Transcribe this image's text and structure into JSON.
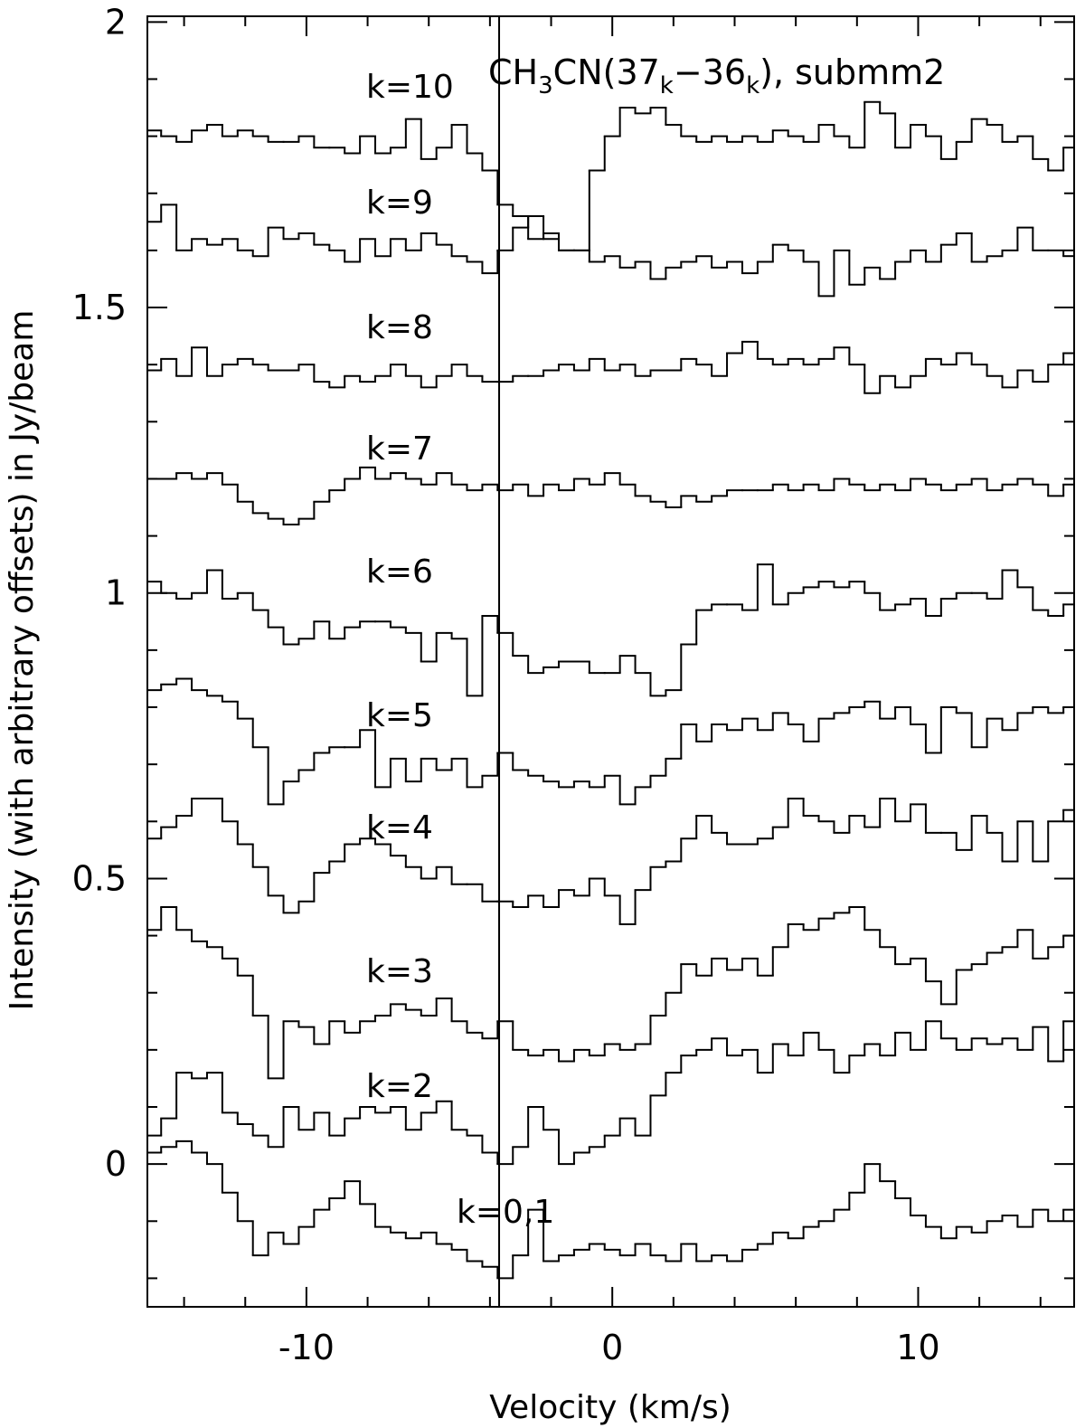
{
  "chart_data": {
    "type": "step",
    "title": [
      "CH",
      "3",
      "CN(37",
      "k",
      "−36",
      "k",
      "), submm2"
    ],
    "xlabel": "Velocity (km/s)",
    "ylabel": "Intensity (with arbitrary offsets) in Jy/beam",
    "xlim": [
      -15.2,
      15.1
    ],
    "ylim": [
      -0.25,
      2.01
    ],
    "xticks": [
      -10,
      0,
      10
    ],
    "yticks": [
      0,
      0.5,
      1,
      1.5,
      2
    ],
    "xminorticks": [
      -14,
      -12,
      -8,
      -6,
      -4,
      -2,
      2,
      4,
      6,
      8,
      12,
      14
    ],
    "yminorticks": [
      -0.2,
      -0.1,
      0.1,
      0.2,
      0.3,
      0.4,
      0.6,
      0.7,
      0.8,
      0.9,
      1.1,
      1.2,
      1.3,
      1.4,
      1.6,
      1.7,
      1.8,
      1.9
    ],
    "vline": -3.7,
    "color": "#000000",
    "x": [
      -15,
      -14.5,
      -14,
      -13.5,
      -13,
      -12.5,
      -12,
      -11.5,
      -11,
      -10.5,
      -10,
      -9.5,
      -9,
      -8.5,
      -8,
      -7.5,
      -7,
      -6.5,
      -6,
      -5.5,
      -5,
      -4.5,
      -4,
      -3.5,
      -3,
      -2.5,
      -2,
      -1.5,
      -1,
      -0.5,
      0,
      0.5,
      1,
      1.5,
      2,
      2.5,
      3,
      3.5,
      4,
      4.5,
      5,
      5.5,
      6,
      6.5,
      7,
      7.5,
      8,
      8.5,
      9,
      9.5,
      10,
      10.5,
      11,
      11.5,
      12,
      12.5,
      13,
      13.5,
      14,
      14.5,
      15
    ],
    "series": [
      {
        "name": "k=10",
        "values": [
          1.81,
          1.8,
          1.79,
          1.81,
          1.82,
          1.8,
          1.81,
          1.8,
          1.79,
          1.79,
          1.8,
          1.78,
          1.78,
          1.77,
          1.8,
          1.77,
          1.78,
          1.83,
          1.76,
          1.78,
          1.82,
          1.77,
          1.74,
          1.68,
          1.66,
          1.62,
          1.63,
          1.6,
          1.6,
          1.74,
          1.8,
          1.85,
          1.84,
          1.85,
          1.82,
          1.8,
          1.79,
          1.8,
          1.79,
          1.8,
          1.79,
          1.81,
          1.8,
          1.79,
          1.82,
          1.8,
          1.78,
          1.86,
          1.84,
          1.78,
          1.82,
          1.8,
          1.76,
          1.79,
          1.83,
          1.82,
          1.79,
          1.8,
          1.76,
          1.74,
          1.78
        ]
      },
      {
        "name": "k=9",
        "values": [
          1.65,
          1.68,
          1.6,
          1.62,
          1.61,
          1.62,
          1.6,
          1.59,
          1.64,
          1.62,
          1.63,
          1.61,
          1.6,
          1.58,
          1.62,
          1.59,
          1.62,
          1.6,
          1.63,
          1.61,
          1.59,
          1.58,
          1.56,
          1.6,
          1.64,
          1.66,
          1.62,
          1.6,
          1.6,
          1.58,
          1.59,
          1.57,
          1.58,
          1.55,
          1.57,
          1.58,
          1.59,
          1.57,
          1.58,
          1.56,
          1.58,
          1.61,
          1.6,
          1.58,
          1.52,
          1.6,
          1.54,
          1.57,
          1.55,
          1.58,
          1.6,
          1.58,
          1.61,
          1.63,
          1.58,
          1.59,
          1.6,
          1.64,
          1.6,
          1.6,
          1.59
        ]
      },
      {
        "name": "k=8",
        "values": [
          1.39,
          1.41,
          1.38,
          1.43,
          1.38,
          1.4,
          1.41,
          1.4,
          1.39,
          1.39,
          1.4,
          1.37,
          1.36,
          1.38,
          1.37,
          1.38,
          1.4,
          1.38,
          1.36,
          1.38,
          1.4,
          1.38,
          1.37,
          1.37,
          1.38,
          1.38,
          1.39,
          1.4,
          1.39,
          1.41,
          1.39,
          1.4,
          1.38,
          1.39,
          1.39,
          1.41,
          1.4,
          1.38,
          1.42,
          1.44,
          1.41,
          1.4,
          1.41,
          1.4,
          1.41,
          1.43,
          1.4,
          1.35,
          1.38,
          1.36,
          1.38,
          1.41,
          1.4,
          1.42,
          1.4,
          1.38,
          1.36,
          1.39,
          1.37,
          1.4,
          1.42
        ]
      },
      {
        "name": "k=7",
        "values": [
          1.2,
          1.2,
          1.21,
          1.2,
          1.21,
          1.19,
          1.16,
          1.14,
          1.13,
          1.12,
          1.13,
          1.16,
          1.18,
          1.2,
          1.22,
          1.2,
          1.21,
          1.2,
          1.19,
          1.21,
          1.19,
          1.18,
          1.19,
          1.18,
          1.19,
          1.17,
          1.19,
          1.18,
          1.2,
          1.19,
          1.21,
          1.19,
          1.17,
          1.16,
          1.15,
          1.17,
          1.16,
          1.17,
          1.18,
          1.18,
          1.18,
          1.19,
          1.18,
          1.19,
          1.18,
          1.2,
          1.19,
          1.18,
          1.19,
          1.18,
          1.2,
          1.19,
          1.18,
          1.19,
          1.2,
          1.18,
          1.19,
          1.2,
          1.19,
          1.17,
          1.19
        ]
      },
      {
        "name": "k=6",
        "values": [
          1.02,
          1.0,
          0.99,
          1.0,
          1.04,
          0.99,
          1.0,
          0.97,
          0.94,
          0.91,
          0.92,
          0.95,
          0.92,
          0.94,
          0.95,
          0.95,
          0.94,
          0.93,
          0.88,
          0.93,
          0.92,
          0.82,
          0.96,
          0.93,
          0.89,
          0.86,
          0.87,
          0.88,
          0.88,
          0.86,
          0.86,
          0.89,
          0.86,
          0.82,
          0.83,
          0.91,
          0.97,
          0.98,
          0.98,
          0.97,
          1.05,
          0.98,
          1.0,
          1.01,
          1.02,
          1.01,
          1.02,
          1.0,
          0.97,
          0.98,
          0.99,
          0.96,
          0.99,
          1.0,
          1.0,
          0.99,
          1.04,
          1.01,
          0.97,
          0.96,
          0.98
        ]
      },
      {
        "name": "k=5",
        "values": [
          0.83,
          0.84,
          0.85,
          0.83,
          0.82,
          0.81,
          0.78,
          0.73,
          0.63,
          0.67,
          0.69,
          0.72,
          0.73,
          0.73,
          0.76,
          0.66,
          0.71,
          0.67,
          0.71,
          0.69,
          0.71,
          0.66,
          0.68,
          0.72,
          0.69,
          0.68,
          0.67,
          0.66,
          0.67,
          0.66,
          0.68,
          0.63,
          0.66,
          0.68,
          0.71,
          0.77,
          0.74,
          0.77,
          0.76,
          0.78,
          0.76,
          0.79,
          0.77,
          0.74,
          0.78,
          0.79,
          0.8,
          0.81,
          0.78,
          0.8,
          0.77,
          0.72,
          0.8,
          0.79,
          0.73,
          0.78,
          0.76,
          0.79,
          0.8,
          0.79,
          0.8
        ]
      },
      {
        "name": "k=4",
        "values": [
          0.57,
          0.59,
          0.61,
          0.64,
          0.64,
          0.6,
          0.56,
          0.52,
          0.47,
          0.44,
          0.46,
          0.51,
          0.53,
          0.56,
          0.57,
          0.56,
          0.54,
          0.52,
          0.5,
          0.52,
          0.49,
          0.49,
          0.46,
          0.46,
          0.45,
          0.47,
          0.45,
          0.48,
          0.47,
          0.5,
          0.47,
          0.42,
          0.48,
          0.52,
          0.53,
          0.57,
          0.61,
          0.58,
          0.56,
          0.56,
          0.57,
          0.59,
          0.64,
          0.61,
          0.6,
          0.58,
          0.61,
          0.59,
          0.64,
          0.6,
          0.63,
          0.58,
          0.58,
          0.55,
          0.61,
          0.58,
          0.53,
          0.6,
          0.53,
          0.6,
          0.62
        ]
      },
      {
        "name": "k=3",
        "values": [
          0.41,
          0.45,
          0.41,
          0.39,
          0.38,
          0.36,
          0.33,
          0.26,
          0.15,
          0.25,
          0.24,
          0.21,
          0.25,
          0.23,
          0.25,
          0.26,
          0.28,
          0.27,
          0.26,
          0.29,
          0.25,
          0.23,
          0.22,
          0.25,
          0.2,
          0.19,
          0.2,
          0.18,
          0.2,
          0.19,
          0.21,
          0.2,
          0.21,
          0.26,
          0.3,
          0.35,
          0.33,
          0.36,
          0.34,
          0.36,
          0.33,
          0.38,
          0.42,
          0.41,
          0.43,
          0.44,
          0.45,
          0.41,
          0.38,
          0.35,
          0.36,
          0.32,
          0.28,
          0.34,
          0.35,
          0.37,
          0.38,
          0.41,
          0.36,
          0.38,
          0.4
        ]
      },
      {
        "name": "k=2",
        "values": [
          0.05,
          0.08,
          0.16,
          0.15,
          0.16,
          0.09,
          0.07,
          0.05,
          0.03,
          0.1,
          0.06,
          0.09,
          0.05,
          0.08,
          0.1,
          0.09,
          0.1,
          0.06,
          0.09,
          0.11,
          0.06,
          0.05,
          0.02,
          0.0,
          0.03,
          0.1,
          0.06,
          0.0,
          0.02,
          0.03,
          0.05,
          0.08,
          0.05,
          0.12,
          0.16,
          0.19,
          0.2,
          0.22,
          0.19,
          0.2,
          0.16,
          0.21,
          0.19,
          0.23,
          0.2,
          0.16,
          0.19,
          0.21,
          0.19,
          0.23,
          0.2,
          0.25,
          0.22,
          0.2,
          0.22,
          0.21,
          0.22,
          0.2,
          0.24,
          0.18,
          0.25
        ]
      },
      {
        "name": "k=0,1",
        "values": [
          0.02,
          0.03,
          0.04,
          0.02,
          0.0,
          -0.05,
          -0.1,
          -0.16,
          -0.12,
          -0.14,
          -0.11,
          -0.08,
          -0.06,
          -0.03,
          -0.07,
          -0.11,
          -0.12,
          -0.13,
          -0.12,
          -0.14,
          -0.15,
          -0.17,
          -0.18,
          -0.2,
          -0.16,
          -0.08,
          -0.17,
          -0.16,
          -0.15,
          -0.14,
          -0.15,
          -0.16,
          -0.14,
          -0.16,
          -0.17,
          -0.14,
          -0.17,
          -0.16,
          -0.17,
          -0.15,
          -0.14,
          -0.12,
          -0.13,
          -0.11,
          -0.1,
          -0.08,
          -0.05,
          0.0,
          -0.03,
          -0.06,
          -0.09,
          -0.11,
          -0.13,
          -0.11,
          -0.12,
          -0.1,
          -0.09,
          -0.11,
          -0.08,
          -0.1,
          -0.08
        ]
      }
    ]
  }
}
